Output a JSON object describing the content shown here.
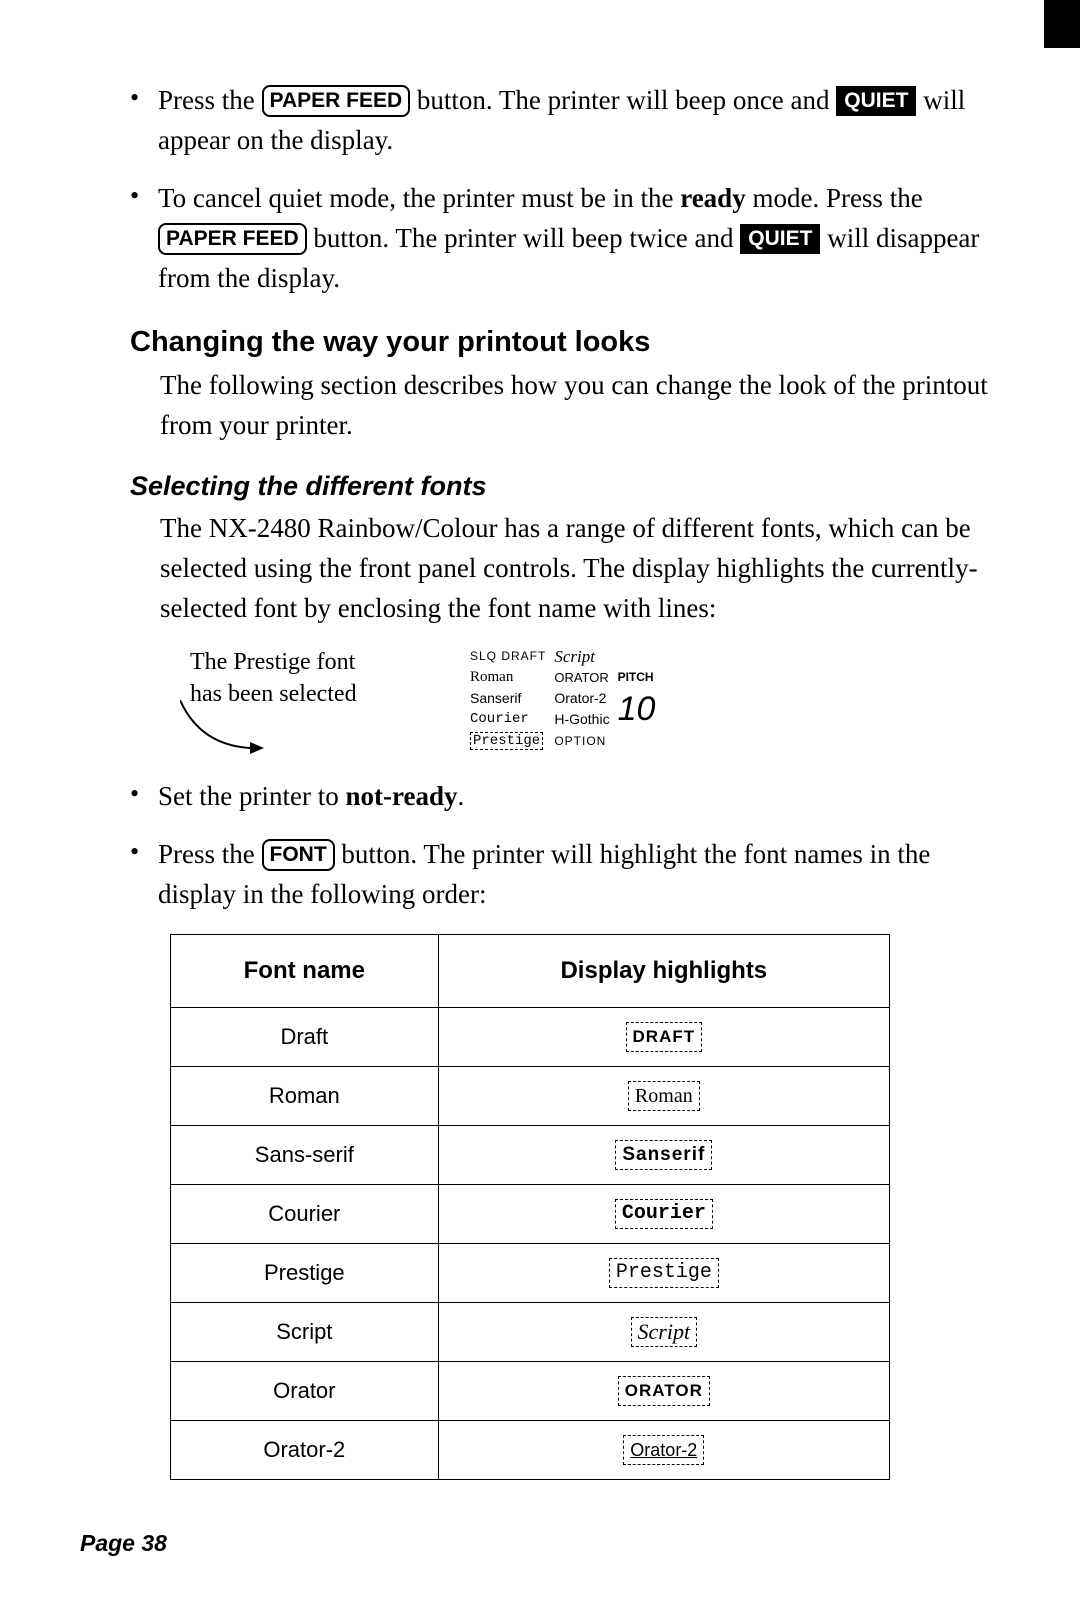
{
  "bullets_top": [
    {
      "pre": "Press the ",
      "btn1": "PAPER FEED",
      "mid1": " button. The printer will beep once and ",
      "btn2": "QUIET",
      "post": " will appear on the display."
    },
    {
      "pre": "To cancel quiet mode, the printer must be in the ",
      "bold1": "ready",
      "mid1": " mode. Press the ",
      "btn1": "PAPER FEED",
      "mid2": " button. The printer will beep twice and ",
      "btn2": "QUIET",
      "post": " will disappear from the display."
    }
  ],
  "h2": "Changing the way your printout looks",
  "p1": "The following section describes how you can change the look of the printout from your printer.",
  "h3": "Selecting the different fonts",
  "p2": "The NX-2480 Rainbow/Colour has a range of different fonts, which can be selected using the front panel controls. The display highlights the currently-selected font by enclosing the font name with lines:",
  "panel_caption_l1": "The Prestige font",
  "panel_caption_l2": "has been selected",
  "panel": {
    "r1c1": "SLQ  DRAFT",
    "r1c2": "Script",
    "r2c1": "Roman",
    "r2c2": "ORATOR",
    "r2c3": "PITCH",
    "r3c1": "Sanserif",
    "r3c2": "Orator-2",
    "pitch_val": "10",
    "r4c1": "Courier",
    "r4c2": "H-Gothic",
    "r5c1": "Prestige",
    "r5c2": "OPTION"
  },
  "bullets_mid": [
    {
      "pre": "Set the printer to ",
      "bold": "not-ready",
      "post": "."
    },
    {
      "pre": "Press the ",
      "btn": "FONT",
      "post": " button. The printer will highlight the font names in the display in the following order:"
    }
  ],
  "table": {
    "h1": "Font name",
    "h2": "Display highlights",
    "rows": [
      {
        "name": "Draft",
        "hl": "DRAFT",
        "cls": "hl-draft"
      },
      {
        "name": "Roman",
        "hl": "Roman",
        "cls": "hl-roman"
      },
      {
        "name": "Sans-serif",
        "hl": "Sanserif",
        "cls": "hl-sans"
      },
      {
        "name": "Courier",
        "hl": "Courier",
        "cls": "hl-courier"
      },
      {
        "name": "Prestige",
        "hl": "Prestige",
        "cls": "hl-prestige"
      },
      {
        "name": "Script",
        "hl": "Script",
        "cls": "hl-script"
      },
      {
        "name": "Orator",
        "hl": "ORATOR",
        "cls": "hl-orator"
      },
      {
        "name": "Orator-2",
        "hl": "Orator-2",
        "cls": "hl-orator2"
      }
    ]
  },
  "page_num": "Page 38"
}
